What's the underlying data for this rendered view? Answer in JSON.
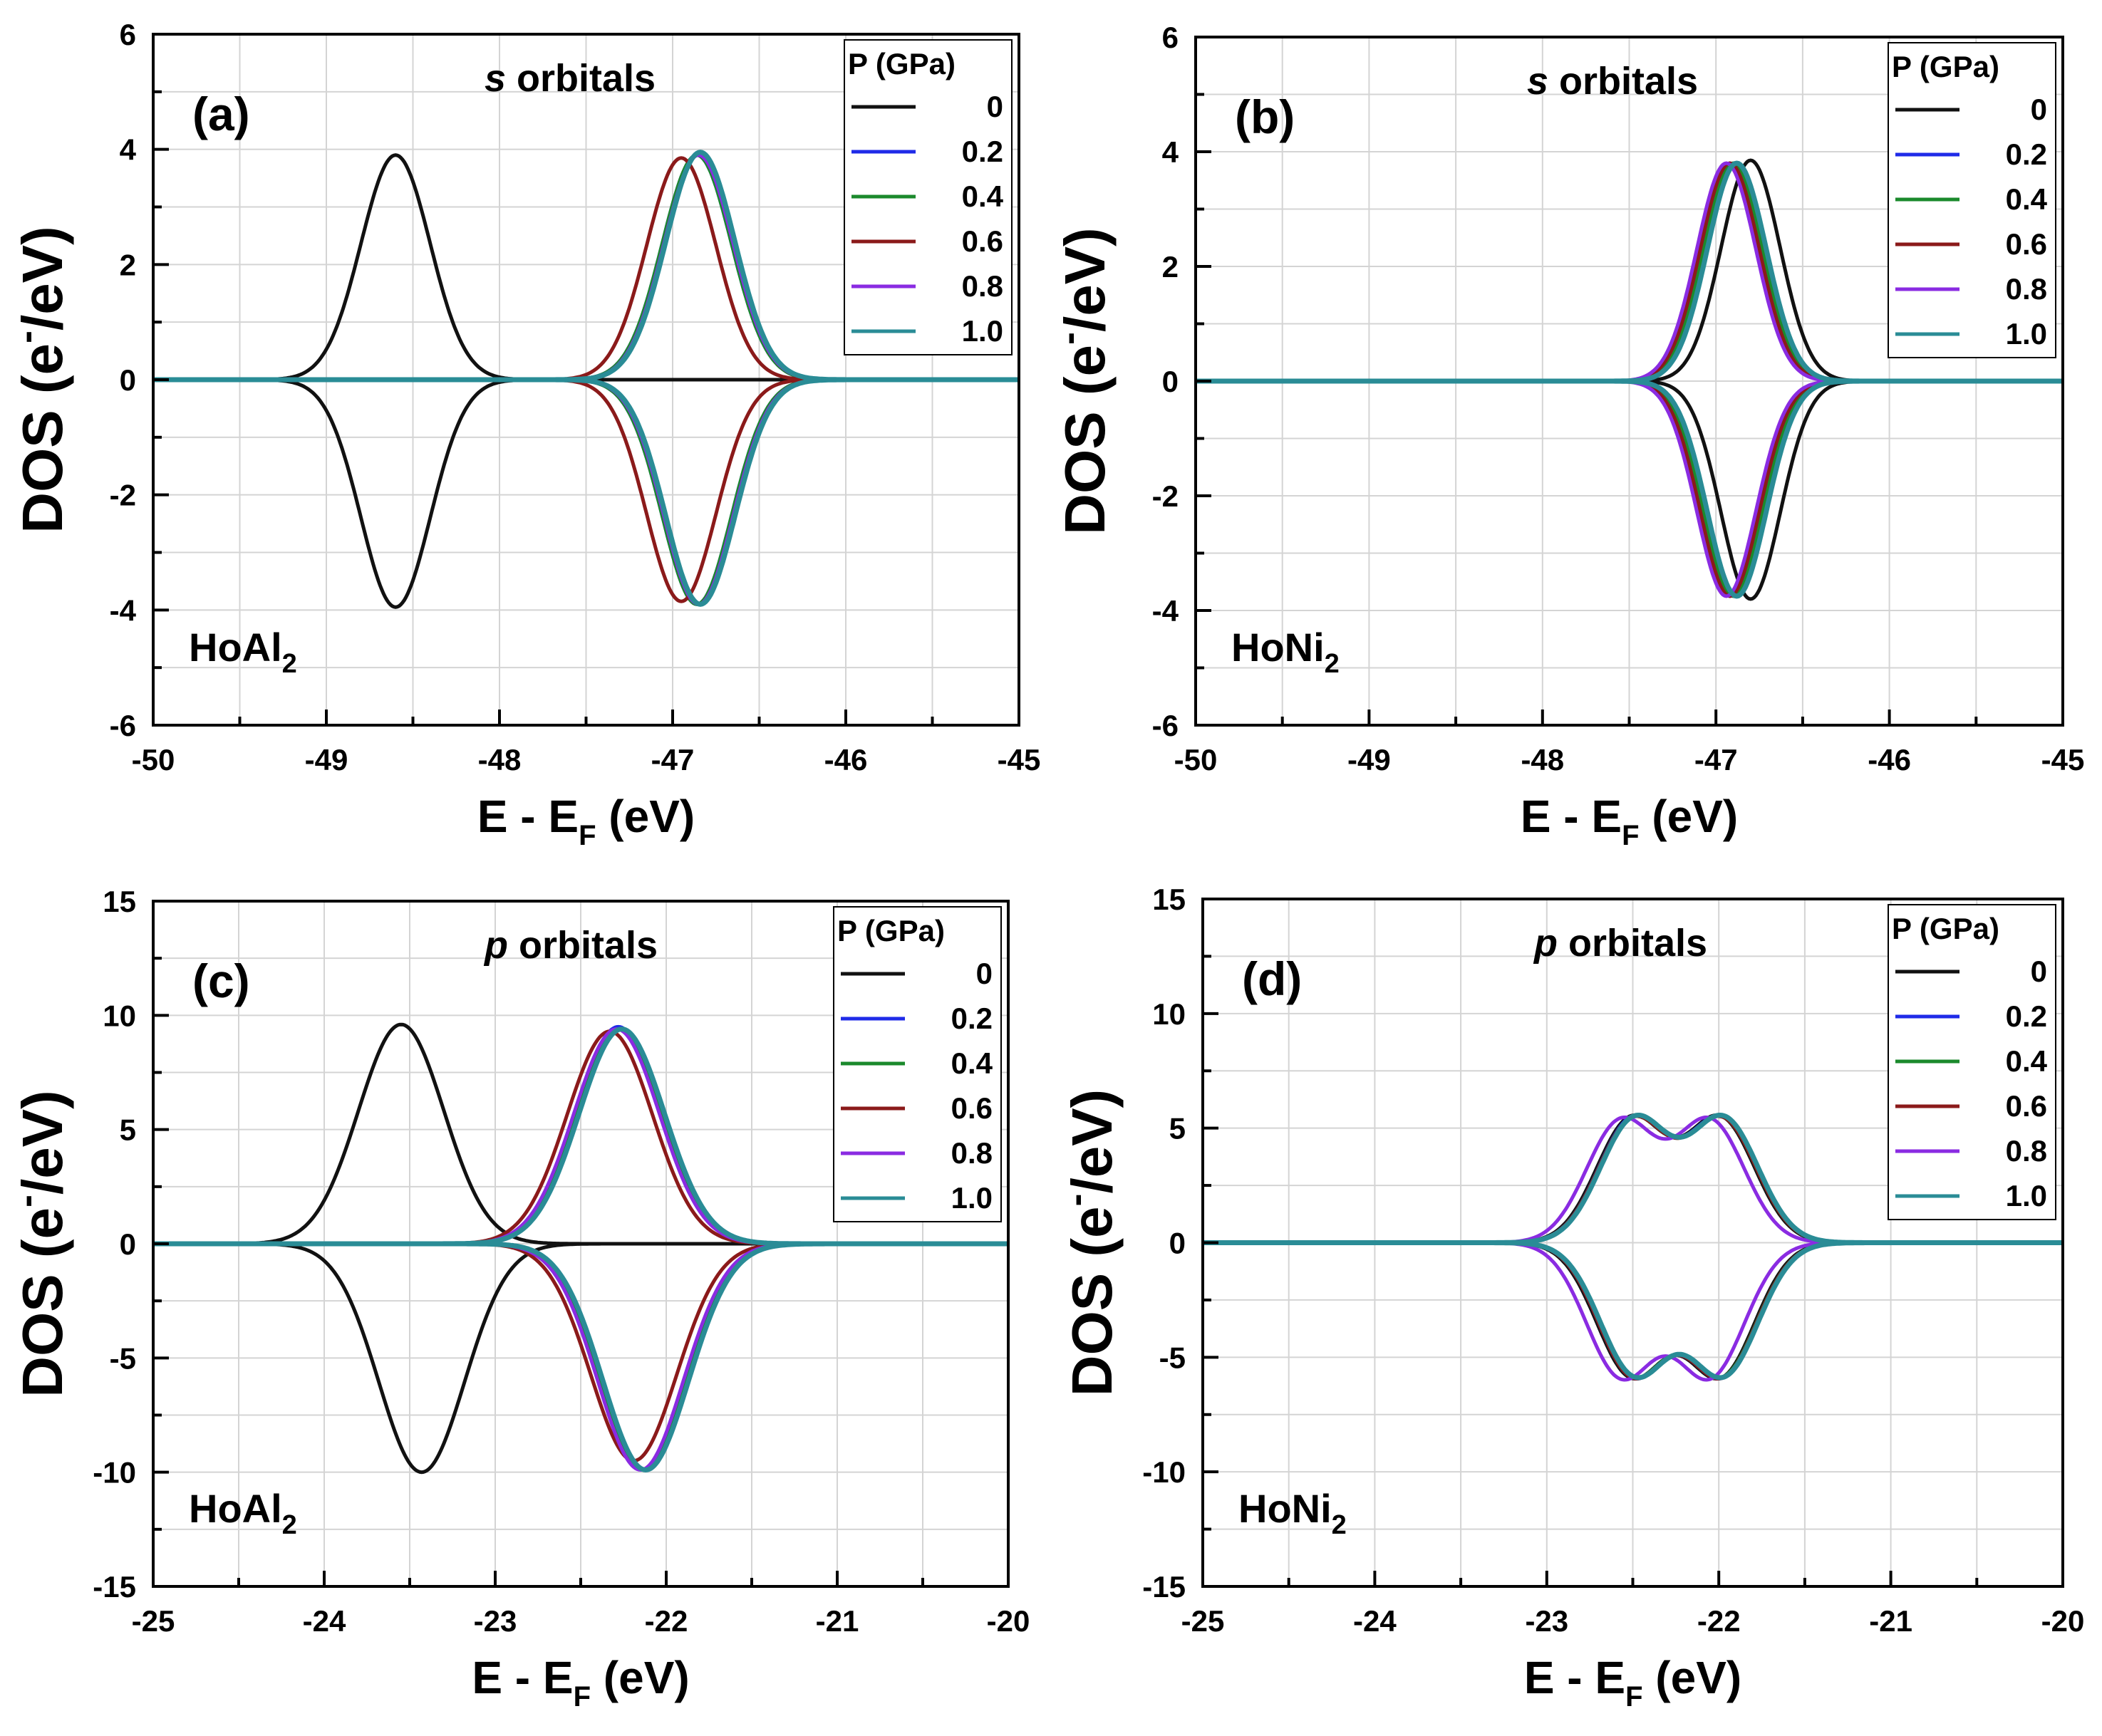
{
  "legend_title": "P (GPa)",
  "x_axis_label": {
    "main": "E - E",
    "sub": "F",
    "unit": " (eV)"
  },
  "y_axis_label": {
    "main": "DOS (e",
    "sup": "-",
    "unit": "/eV)"
  },
  "series_colors": {
    "0": "#111111",
    "0.2": "#1f2be8",
    "0.4": "#1b8a2c",
    "0.6": "#8b1a1a",
    "0.8": "#8a2be2",
    "1.0": "#2a8c96"
  },
  "chart_data": [
    {
      "id": "a",
      "type": "line",
      "panel_label": "(a)",
      "orbital": {
        "symbol": "s",
        "rest": " orbitals"
      },
      "material": {
        "base": "HoAl",
        "sub": "2"
      },
      "xlim": [
        -50,
        -45
      ],
      "ylim": [
        -6,
        6
      ],
      "xticks": [
        "-50",
        "-49",
        "-48",
        "-47",
        "-46",
        "-45"
      ],
      "yticks": [
        "6",
        "4",
        "2",
        "0",
        "-2",
        "-4",
        "-6"
      ],
      "legend_entries": [
        "0",
        "0.2",
        "0.4",
        "0.6",
        "0.8",
        "1.0"
      ],
      "series": [
        {
          "name": "0",
          "shape": "gauss",
          "center": -48.6,
          "width": 0.2,
          "up": 3.9,
          "down": -3.95
        },
        {
          "name": "0.2",
          "shape": "gauss",
          "center": -46.86,
          "width": 0.2,
          "up": 3.9,
          "down": -3.9
        },
        {
          "name": "0.4",
          "shape": "gauss",
          "center": -46.86,
          "width": 0.2,
          "up": 3.9,
          "down": -3.9
        },
        {
          "name": "0.6",
          "shape": "gauss",
          "center": -46.95,
          "width": 0.2,
          "up": 3.85,
          "down": -3.85
        },
        {
          "name": "0.8",
          "shape": "gauss",
          "center": -46.85,
          "width": 0.2,
          "up": 3.9,
          "down": -3.9
        },
        {
          "name": "1.0",
          "shape": "gauss",
          "center": -46.84,
          "width": 0.2,
          "up": 3.95,
          "down": -3.9
        }
      ]
    },
    {
      "id": "b",
      "type": "line",
      "panel_label": "(b)",
      "orbital": {
        "symbol": "s",
        "rest": " orbitals"
      },
      "material": {
        "base": "HoNi",
        "sub": "2"
      },
      "xlim": [
        -50,
        -45
      ],
      "ylim": [
        -6,
        6
      ],
      "xticks": [
        "-50",
        "-49",
        "-48",
        "-47",
        "-46",
        "-45"
      ],
      "yticks": [
        "6",
        "4",
        "2",
        "0",
        "-2",
        "-4",
        "-6"
      ],
      "legend_entries": [
        "0",
        "0.2",
        "0.4",
        "0.6",
        "0.8",
        "1.0"
      ],
      "series": [
        {
          "name": "0",
          "shape": "gauss",
          "center": -46.8,
          "width": 0.17,
          "up": 3.85,
          "down": -3.8
        },
        {
          "name": "0.2",
          "shape": "gauss",
          "center": -46.92,
          "width": 0.17,
          "up": 3.8,
          "down": -3.75
        },
        {
          "name": "0.4",
          "shape": "gauss",
          "center": -46.9,
          "width": 0.17,
          "up": 3.8,
          "down": -3.75
        },
        {
          "name": "0.6",
          "shape": "gauss",
          "center": -46.92,
          "width": 0.17,
          "up": 3.8,
          "down": -3.75
        },
        {
          "name": "0.8",
          "shape": "gauss",
          "center": -46.94,
          "width": 0.17,
          "up": 3.8,
          "down": -3.75
        },
        {
          "name": "1.0",
          "shape": "gauss",
          "center": -46.88,
          "width": 0.17,
          "up": 3.8,
          "down": -3.75
        }
      ]
    },
    {
      "id": "c",
      "type": "line",
      "panel_label": "(c)",
      "orbital": {
        "symbol": "p",
        "rest": " orbitals"
      },
      "material": {
        "base": "HoAl",
        "sub": "2"
      },
      "xlim": [
        -25,
        -20
      ],
      "ylim": [
        -15,
        15
      ],
      "xticks": [
        "-25",
        "-24",
        "-23",
        "-22",
        "-21",
        "-20"
      ],
      "yticks": [
        "15",
        "10",
        "5",
        "0",
        "-5",
        "-10",
        "-15"
      ],
      "legend_entries": [
        "0",
        "0.2",
        "0.4",
        "0.6",
        "0.8",
        "1.0"
      ],
      "series": [
        {
          "name": "0",
          "shape": "gauss",
          "center": -23.55,
          "width": 0.25,
          "up": 9.6,
          "down": -10.0,
          "down_shift": 0.12
        },
        {
          "name": "0.2",
          "shape": "gauss",
          "center": -22.28,
          "width": 0.25,
          "up": 9.5,
          "down": -9.9,
          "down_shift": 0.14
        },
        {
          "name": "0.4",
          "shape": "gauss",
          "center": -22.27,
          "width": 0.25,
          "up": 9.4,
          "down": -9.9,
          "down_shift": 0.14
        },
        {
          "name": "0.6",
          "shape": "gauss",
          "center": -22.33,
          "width": 0.25,
          "up": 9.3,
          "down": -9.5,
          "down_shift": 0.14
        },
        {
          "name": "0.8",
          "shape": "gauss",
          "center": -22.29,
          "width": 0.25,
          "up": 9.4,
          "down": -9.9,
          "down_shift": 0.14
        },
        {
          "name": "1.0",
          "shape": "gauss",
          "center": -22.26,
          "width": 0.25,
          "up": 9.4,
          "down": -9.9,
          "down_shift": 0.14
        }
      ]
    },
    {
      "id": "d",
      "type": "line",
      "panel_label": "(d)",
      "orbital": {
        "symbol": "p",
        "rest": " orbitals"
      },
      "material": {
        "base": "HoNi",
        "sub": "2"
      },
      "xlim": [
        -25,
        -20
      ],
      "ylim": [
        -15,
        15
      ],
      "xticks": [
        "-25",
        "-24",
        "-23",
        "-22",
        "-21",
        "-20"
      ],
      "yticks": [
        "15",
        "10",
        "5",
        "0",
        "-5",
        "-10",
        "-15"
      ],
      "legend_entries": [
        "0",
        "0.2",
        "0.4",
        "0.6",
        "0.8",
        "1.0"
      ],
      "series": [
        {
          "name": "0",
          "shape": "plateau",
          "center": -22.25,
          "width": 0.2,
          "up": 6.0,
          "down": -6.4
        },
        {
          "name": "0.2",
          "shape": "plateau",
          "center": -22.24,
          "width": 0.2,
          "up": 6.0,
          "down": -6.4
        },
        {
          "name": "0.4",
          "shape": "plateau",
          "center": -22.24,
          "width": 0.2,
          "up": 5.95,
          "down": -6.35
        },
        {
          "name": "0.6",
          "shape": "plateau",
          "center": -22.24,
          "width": 0.2,
          "up": 5.95,
          "down": -6.4
        },
        {
          "name": "0.8",
          "shape": "plateau",
          "center": -22.31,
          "width": 0.2,
          "up": 5.9,
          "down": -6.45
        },
        {
          "name": "1.0",
          "shape": "plateau",
          "center": -22.23,
          "width": 0.2,
          "up": 6.0,
          "down": -6.35
        }
      ]
    }
  ]
}
